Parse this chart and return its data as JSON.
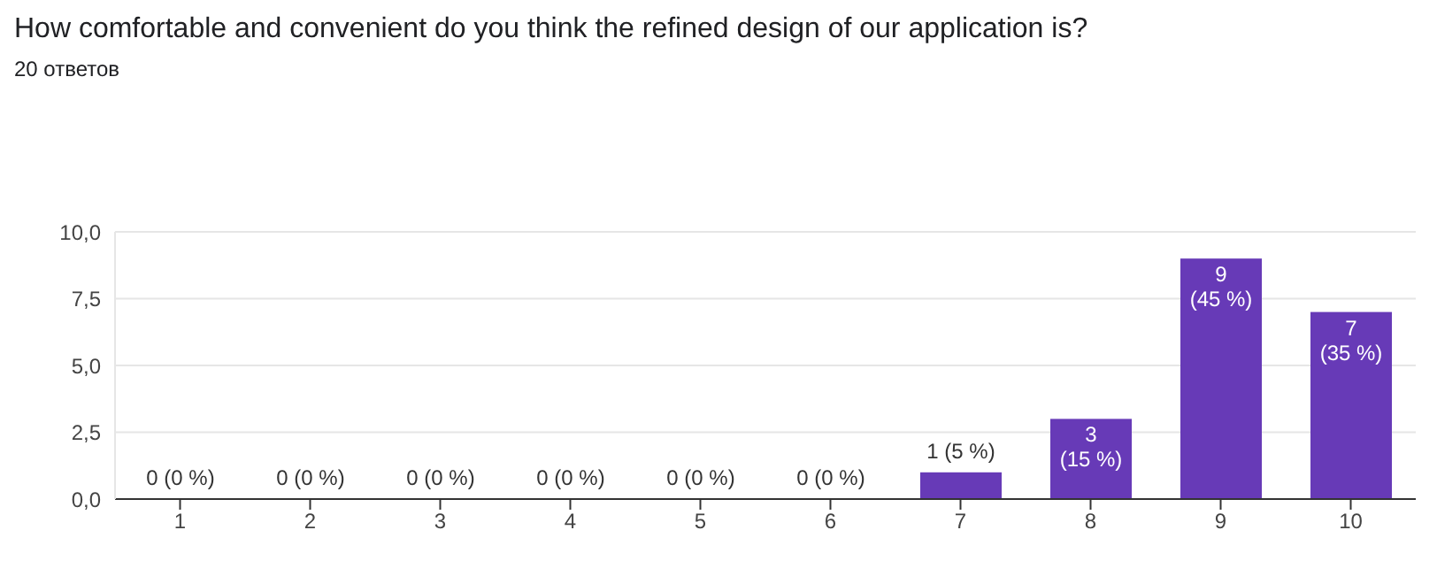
{
  "chart_data": {
    "type": "bar",
    "title": "How comfortable and convenient do you think the refined design of our application is?",
    "subtitle": "20 ответов",
    "categories": [
      "1",
      "2",
      "3",
      "4",
      "5",
      "6",
      "7",
      "8",
      "9",
      "10"
    ],
    "values": [
      0,
      0,
      0,
      0,
      0,
      0,
      1,
      3,
      9,
      7
    ],
    "value_labels": [
      "0 (0 %)",
      "0 (0 %)",
      "0 (0 %)",
      "0 (0 %)",
      "0 (0 %)",
      "0 (0 %)",
      "1 (5 %)",
      "3\n(15 %)",
      "9\n(45 %)",
      "7\n(35 %)"
    ],
    "color": "#673ab7",
    "ylim": [
      0,
      10
    ],
    "yticks": [
      {
        "value": 0,
        "label": "0,0"
      },
      {
        "value": 2.5,
        "label": "2,5"
      },
      {
        "value": 5,
        "label": "5,0"
      },
      {
        "value": 7.5,
        "label": "7,5"
      },
      {
        "value": 10,
        "label": "10,0"
      }
    ],
    "grid": "y"
  }
}
